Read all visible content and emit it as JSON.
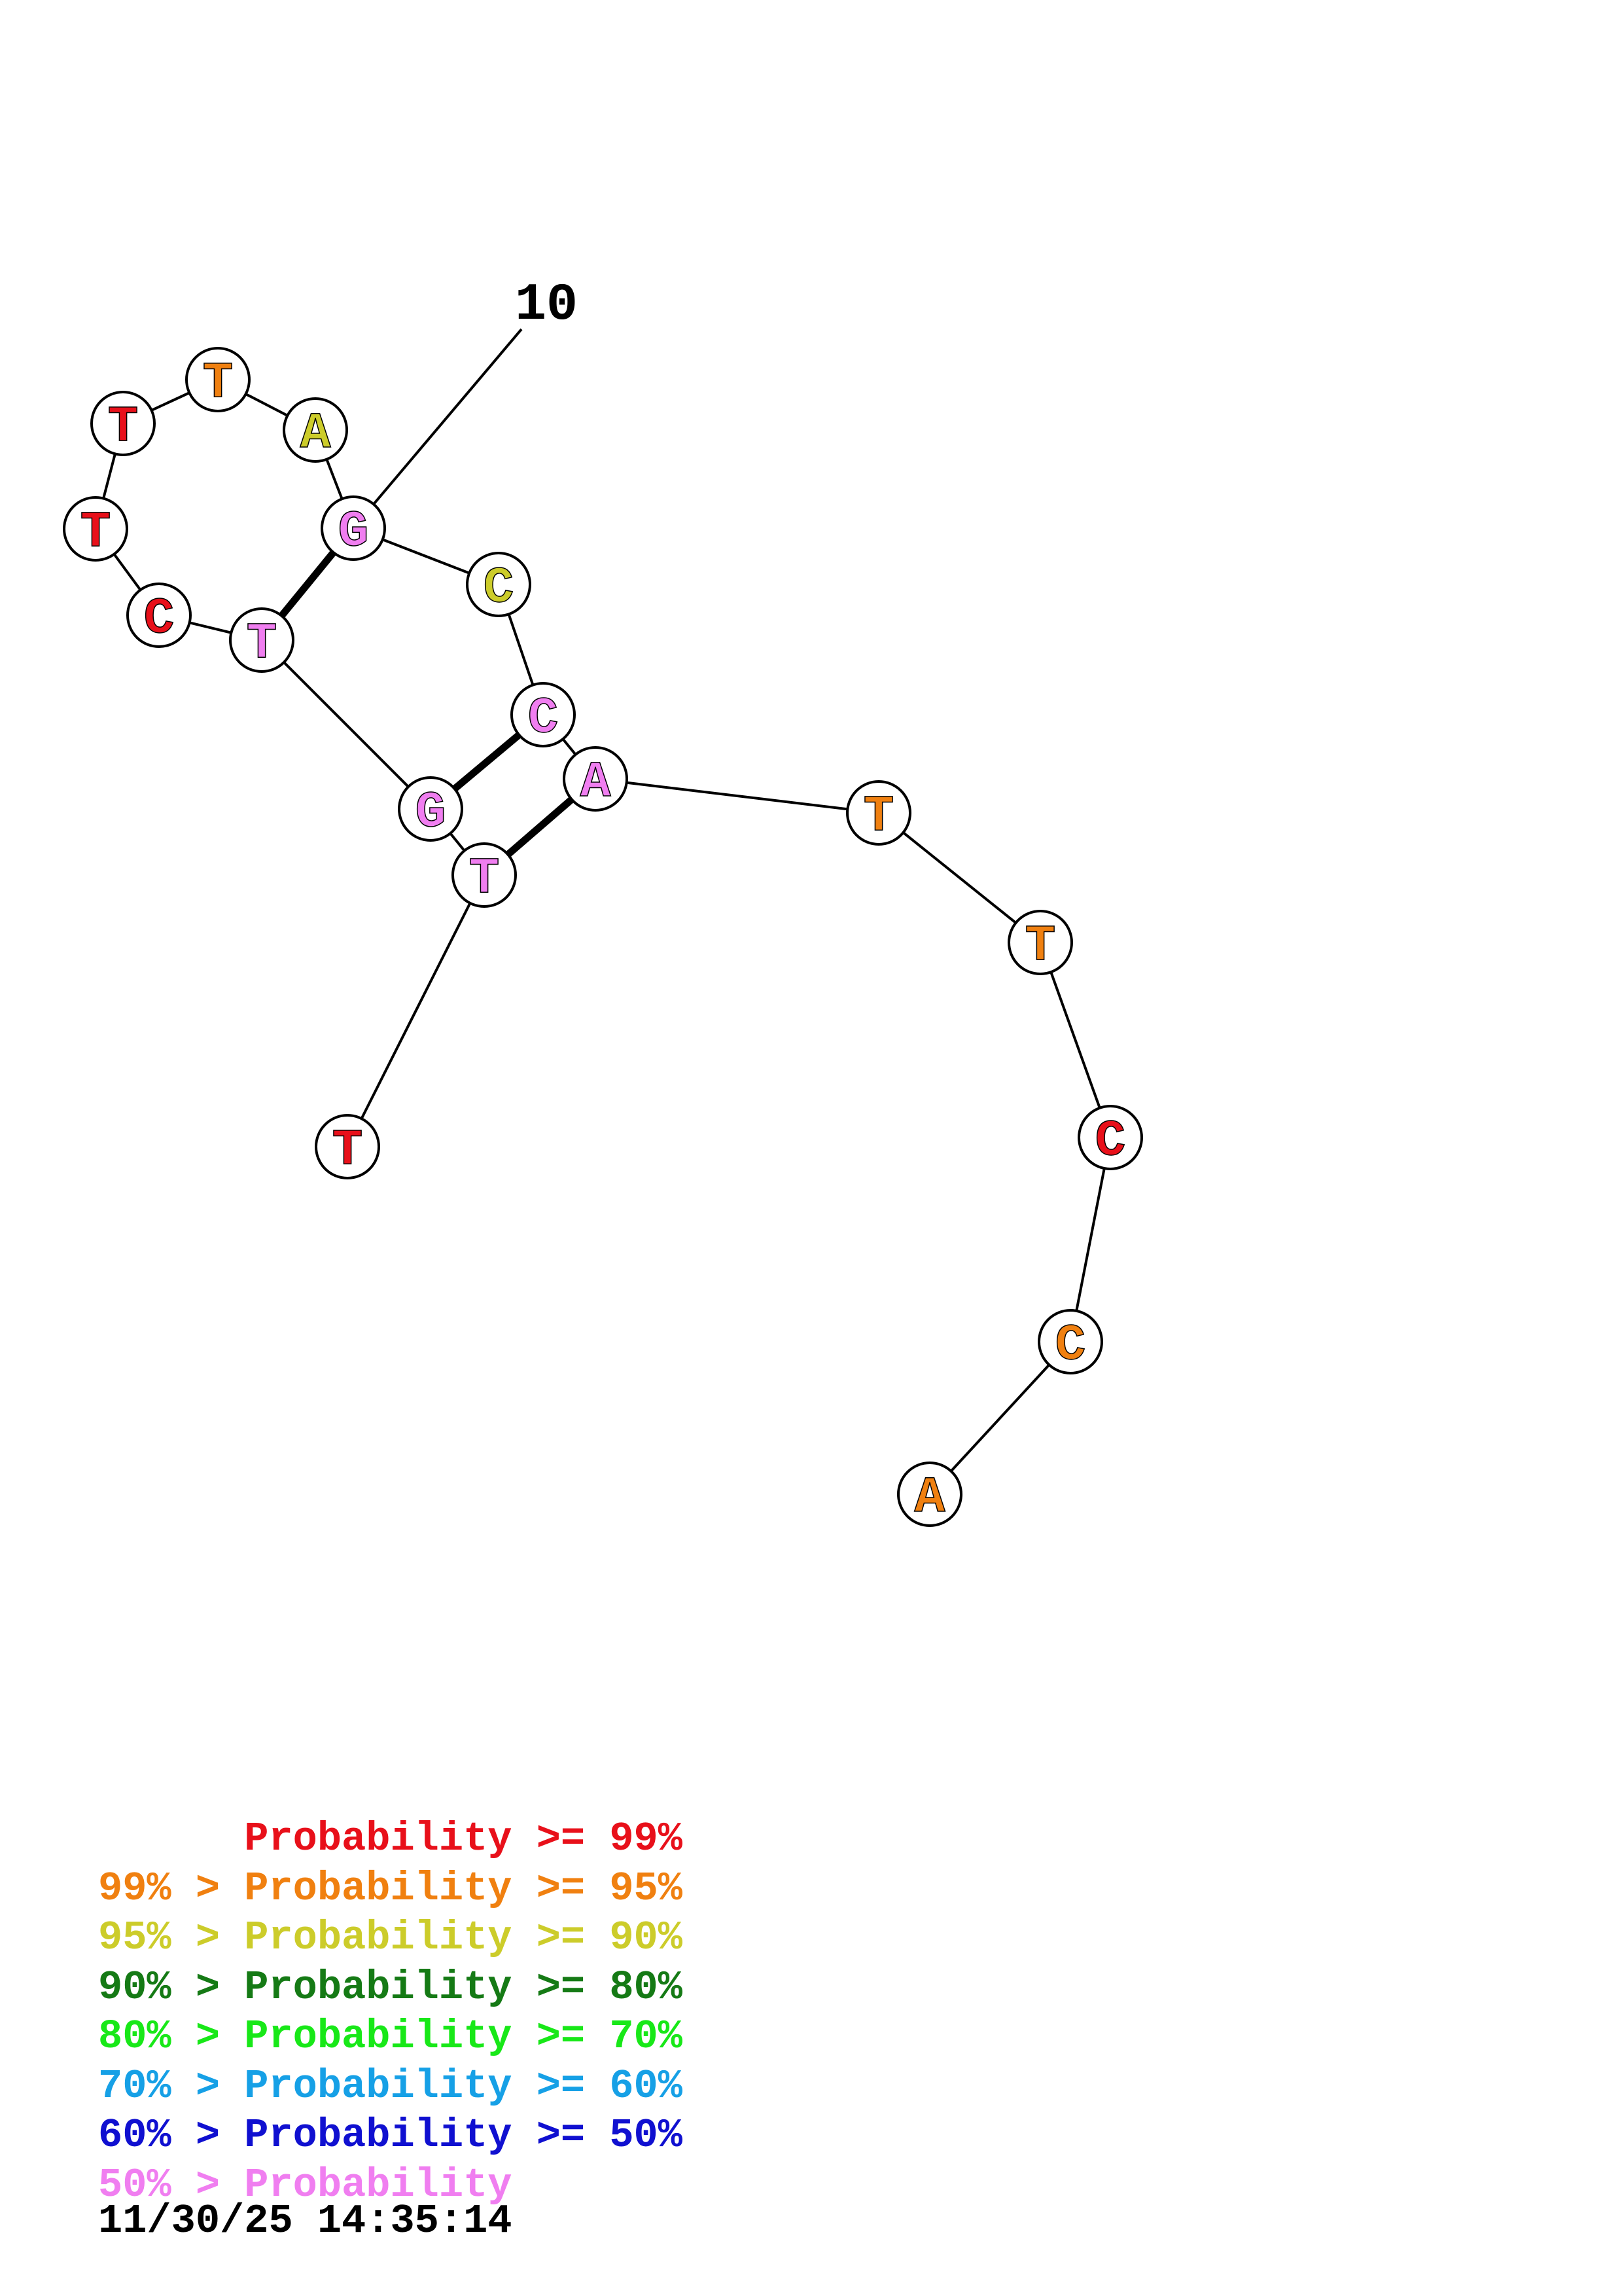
{
  "colors": {
    "p99": "#e8101a",
    "p95": "#f08010",
    "p90": "#cccc2a",
    "p80": "#157a15",
    "p70": "#18e818",
    "p60": "#16a0e6",
    "p50": "#1010d0",
    "plt50": "#f07ef0"
  },
  "structure": {
    "position_marker": "10",
    "nucleotides": [
      {
        "idx": 1,
        "base": "T",
        "color_class": "p99"
      },
      {
        "idx": 2,
        "base": "T",
        "color_class": "plt50"
      },
      {
        "idx": 3,
        "base": "G",
        "color_class": "plt50"
      },
      {
        "idx": 4,
        "base": "T",
        "color_class": "plt50"
      },
      {
        "idx": 5,
        "base": "C",
        "color_class": "p99"
      },
      {
        "idx": 6,
        "base": "T",
        "color_class": "p99"
      },
      {
        "idx": 7,
        "base": "T",
        "color_class": "p99"
      },
      {
        "idx": 8,
        "base": "T",
        "color_class": "p95"
      },
      {
        "idx": 9,
        "base": "A",
        "color_class": "p90"
      },
      {
        "idx": 10,
        "base": "G",
        "color_class": "plt50"
      },
      {
        "idx": 11,
        "base": "C",
        "color_class": "p90"
      },
      {
        "idx": 12,
        "base": "C",
        "color_class": "plt50"
      },
      {
        "idx": 13,
        "base": "A",
        "color_class": "plt50"
      },
      {
        "idx": 14,
        "base": "T",
        "color_class": "p95"
      },
      {
        "idx": 15,
        "base": "T",
        "color_class": "p95"
      },
      {
        "idx": 16,
        "base": "C",
        "color_class": "p99"
      },
      {
        "idx": 17,
        "base": "C",
        "color_class": "p95"
      },
      {
        "idx": 18,
        "base": "A",
        "color_class": "p95"
      }
    ],
    "pairs": [
      [
        2,
        13
      ],
      [
        3,
        12
      ],
      [
        4,
        10
      ]
    ]
  },
  "legend": [
    {
      "prefix": "",
      "text": "Probability >= 99%",
      "color_class": "p99"
    },
    {
      "prefix": "99% > ",
      "text": "Probability >= 95%",
      "color_class": "p95"
    },
    {
      "prefix": "95% > ",
      "text": "Probability >= 90%",
      "color_class": "p90"
    },
    {
      "prefix": "90% > ",
      "text": "Probability >= 80%",
      "color_class": "p80"
    },
    {
      "prefix": "80% > ",
      "text": "Probability >= 70%",
      "color_class": "p70"
    },
    {
      "prefix": "70% > ",
      "text": "Probability >= 60%",
      "color_class": "p60"
    },
    {
      "prefix": "60% > ",
      "text": "Probability >= 50%",
      "color_class": "p50"
    },
    {
      "prefix": "50% > ",
      "text": "Probability",
      "color_class": "plt50"
    }
  ],
  "timestamp": "11/30/25 14:35:14"
}
